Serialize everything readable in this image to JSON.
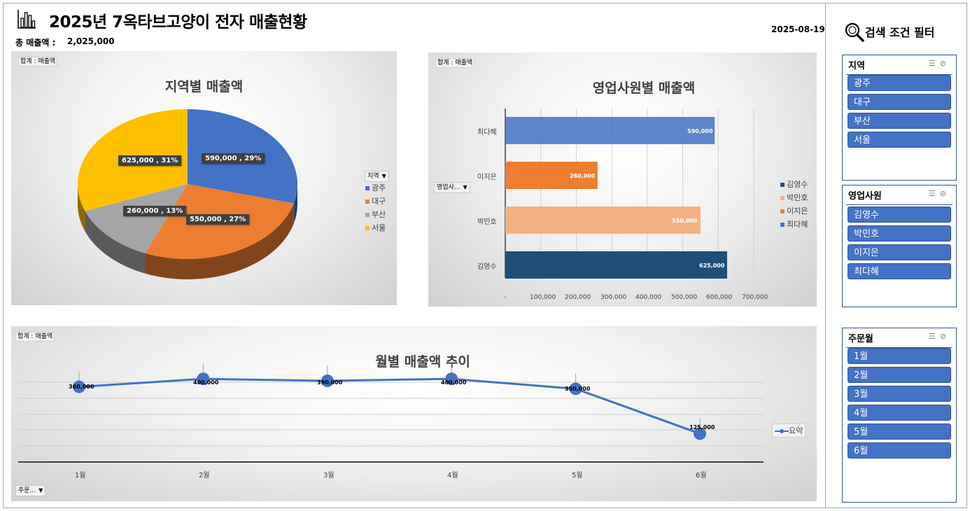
{
  "header": {
    "title": "2025년 7옥타브고양이 전자 매출현황",
    "date": "2025-08-19",
    "total_label": "총 매출액 :",
    "total_value": "2,025,000"
  },
  "colors": {
    "blue": "#4472c4",
    "orange": "#ed7d31",
    "gray": "#a5a5a5",
    "yellow": "#ffc000",
    "navy": "#1f4e79",
    "peach": "#f4b183",
    "slicer_blue": "#4472c4"
  },
  "pie_chart": {
    "sum_tag": "합계 : 매출액",
    "filter_label": "지역",
    "legend": [
      "광주",
      "대구",
      "부산",
      "서울"
    ],
    "data_labels": [
      "590,000 , 29%",
      "550,000 , 27%",
      "260,000 , 13%",
      "625,000 , 31%"
    ]
  },
  "bar_chart": {
    "sum_tag": "합계 : 매출액",
    "filter_label": "영업사...",
    "legend": [
      "김영수",
      "박민호",
      "이지은",
      "최다혜"
    ],
    "categories": [
      "최다혜",
      "이지은",
      "박민호",
      "김영수"
    ],
    "value_labels": [
      "590,000",
      "260,000",
      "550,000",
      "625,000"
    ],
    "x_ticks": [
      "-",
      "100,000",
      "200,000",
      "300,000",
      "400,000",
      "500,000",
      "600,000",
      "700,000"
    ]
  },
  "line_chart": {
    "sum_tag": "합계 : 매출액",
    "filter_label": "주문...",
    "legend_label": "요약",
    "value_labels": [
      "360,000",
      "400,000",
      "390,000",
      "400,000",
      "350,000",
      "125,000"
    ],
    "months": [
      "1월",
      "2월",
      "3월",
      "4월",
      "5월",
      "6월"
    ]
  },
  "chart_data": [
    {
      "type": "pie",
      "title": "지역별 매출액",
      "categories": [
        "광주",
        "대구",
        "부산",
        "서울"
      ],
      "values": [
        590000,
        550000,
        260000,
        625000
      ],
      "percentages": [
        29,
        27,
        13,
        31
      ],
      "legend_placement": "right"
    },
    {
      "type": "bar",
      "orientation": "horizontal",
      "title": "영업사원별 매출액",
      "categories": [
        "최다혜",
        "이지은",
        "박민호",
        "김영수"
      ],
      "values": [
        590000,
        260000,
        550000,
        625000
      ],
      "xlim": [
        0,
        700000
      ],
      "grid": true,
      "legend_placement": "right"
    },
    {
      "type": "line",
      "title": "월별 매출액 추이",
      "categories": [
        "1월",
        "2월",
        "3월",
        "4월",
        "5월",
        "6월"
      ],
      "series": [
        {
          "name": "요약",
          "values": [
            360000,
            400000,
            390000,
            400000,
            350000,
            125000
          ]
        }
      ],
      "grid": true,
      "legend_placement": "right"
    }
  ],
  "filter_panel": {
    "title": "검색 조건 필터",
    "slicers": [
      {
        "title": "지역",
        "items": [
          "광주",
          "대구",
          "부산",
          "서울"
        ]
      },
      {
        "title": "영업사원",
        "items": [
          "김영수",
          "박민호",
          "이지은",
          "최다혜"
        ]
      },
      {
        "title": "주문월",
        "items": [
          "1월",
          "2월",
          "3월",
          "4월",
          "5월",
          "6월"
        ]
      }
    ],
    "icons": [
      "multi-select-icon",
      "clear-filter-icon"
    ]
  }
}
